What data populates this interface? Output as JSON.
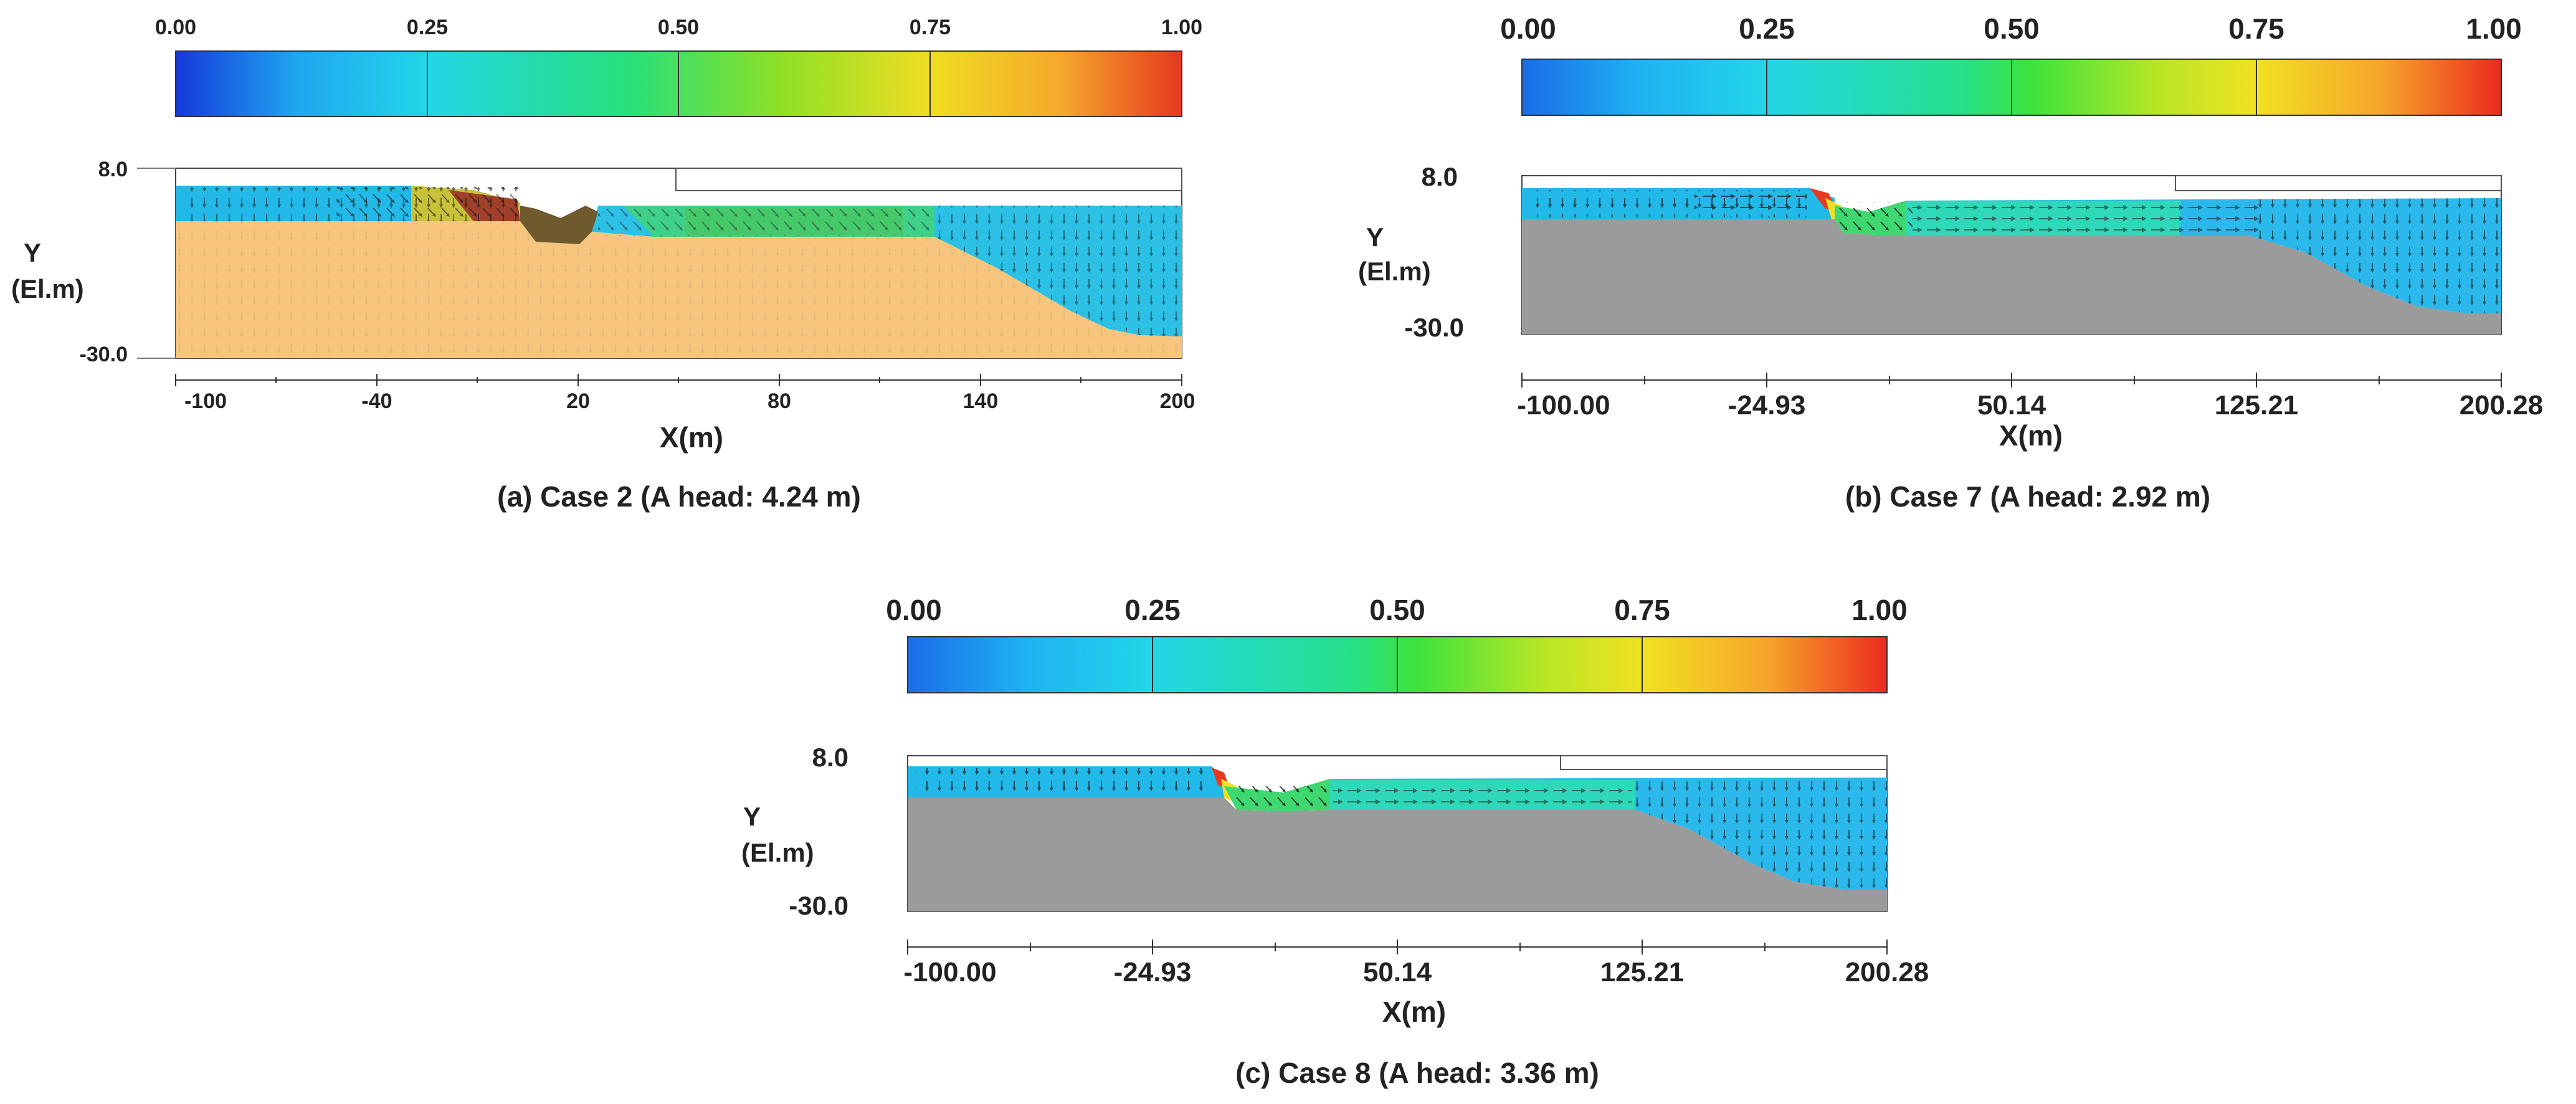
{
  "chart_data": [
    {
      "type": "heatmap",
      "caption": "(a) Case 2 (A head: 4.24 m)",
      "colorbar": {
        "ticks": [
          "0.00",
          "0.25",
          "0.50",
          "0.75",
          "1.00"
        ],
        "range": [
          0.0,
          1.0
        ]
      },
      "y_axis": {
        "label_line1": "Y",
        "label_line2": "(El.m)",
        "top_label": "8.0",
        "bottom_label": "-30.0",
        "range": [
          -30.0,
          8.0
        ]
      },
      "x_axis": {
        "label": "X(m)",
        "ticks": [
          "-100",
          "-40",
          "20",
          "80",
          "140",
          "200"
        ],
        "range": [
          -100,
          200
        ]
      },
      "ground_color": "#F7C57E",
      "water_color": "#22B8E8"
    },
    {
      "type": "heatmap",
      "caption": "(b) Case 7 (A head: 2.92 m)",
      "colorbar": {
        "ticks": [
          "0.00",
          "0.25",
          "0.50",
          "0.75",
          "1.00"
        ],
        "range": [
          0.0,
          1.0
        ]
      },
      "y_axis": {
        "label_line1": "Y",
        "label_line2": "(El.m)",
        "top_label": "8.0",
        "bottom_label": "-30.0",
        "range": [
          -30.0,
          8.0
        ]
      },
      "x_axis": {
        "label": "X(m)",
        "ticks": [
          "-100.00",
          "-24.93",
          "50.14",
          "125.21",
          "200.28"
        ],
        "range": [
          -100.0,
          200.28
        ]
      },
      "ground_color": "#9B9B9B",
      "water_color": "#22B8E8"
    },
    {
      "type": "heatmap",
      "caption": "(c) Case 8 (A head: 3.36 m)",
      "colorbar": {
        "ticks": [
          "0.00",
          "0.25",
          "0.50",
          "0.75",
          "1.00"
        ],
        "range": [
          0.0,
          1.0
        ]
      },
      "y_axis": {
        "label_line1": "Y",
        "label_line2": "(El.m)",
        "top_label": "8.0",
        "bottom_label": "-30.0",
        "range": [
          -30.0,
          8.0
        ]
      },
      "x_axis": {
        "label": "X(m)",
        "ticks": [
          "-100.00",
          "-24.93",
          "50.14",
          "125.21",
          "200.28"
        ],
        "range": [
          -100.0,
          200.28
        ]
      },
      "ground_color": "#9B9B9B",
      "water_color": "#22B8E8"
    }
  ]
}
